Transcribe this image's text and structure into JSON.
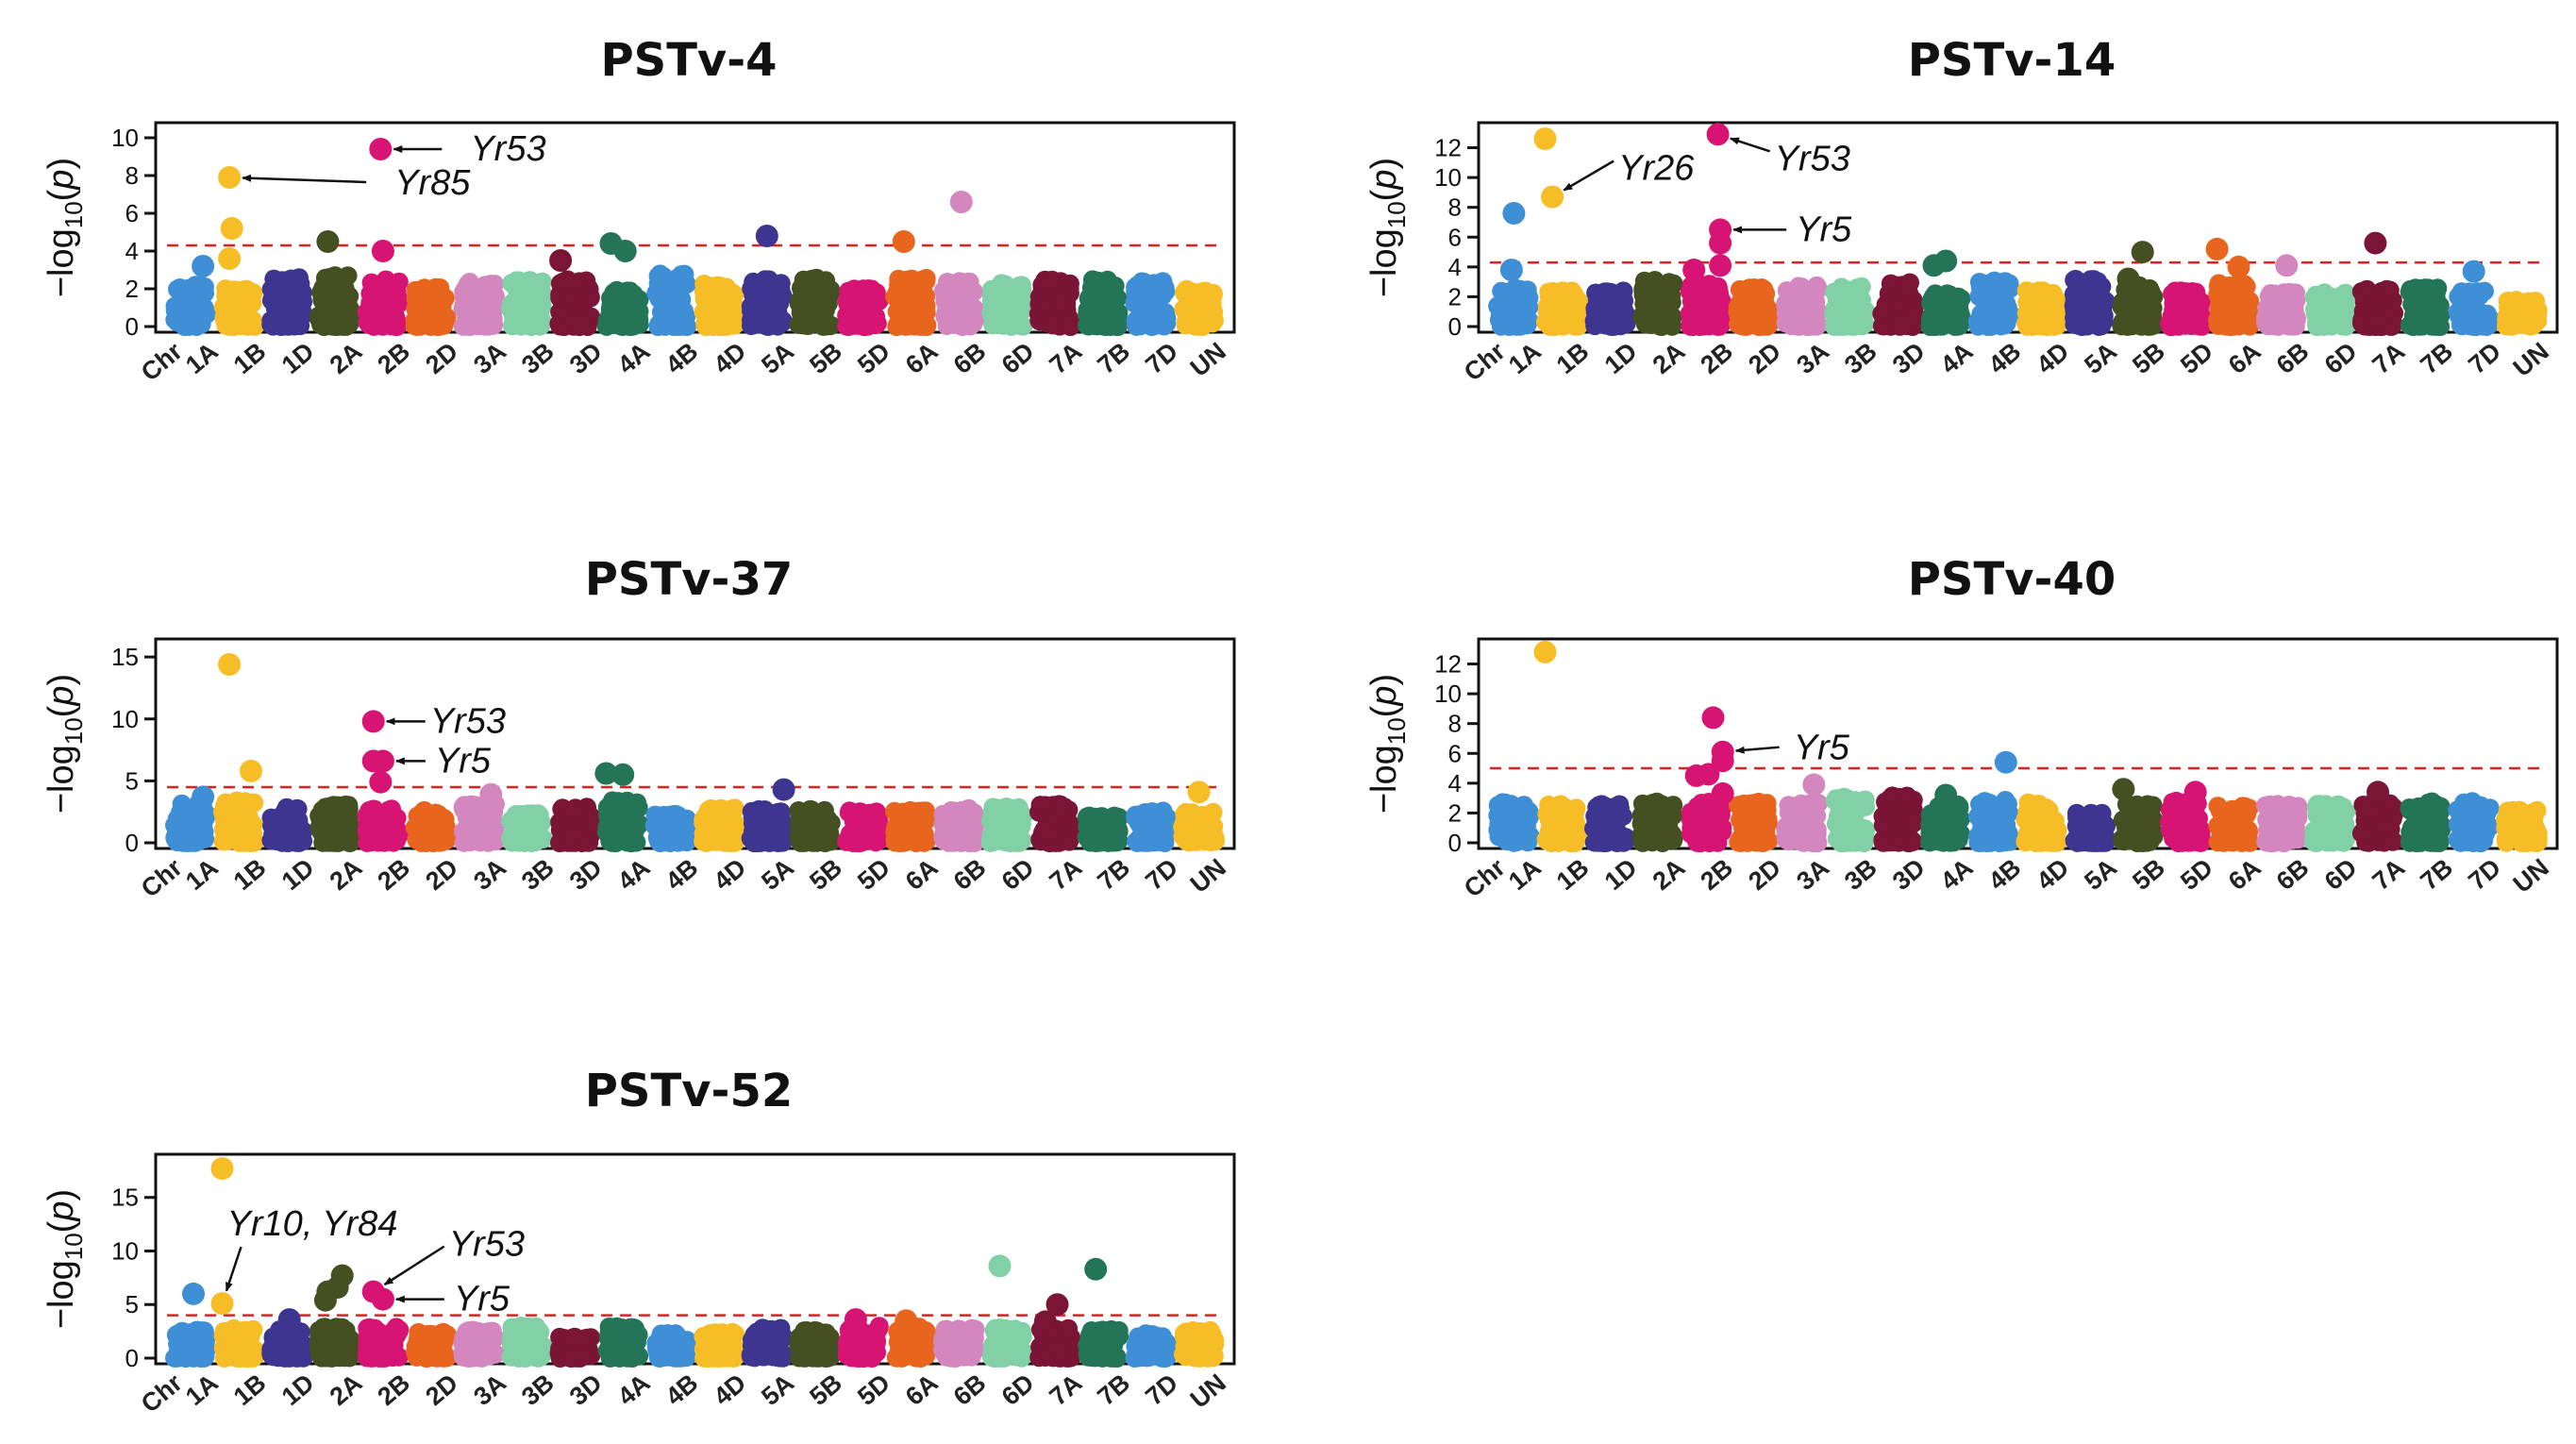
{
  "chart_data": [
    {
      "type": "scatter",
      "title": "PSTv-4",
      "ylabel": "−log10(p)",
      "ylim": [
        0,
        10.5
      ],
      "yticks": [
        0,
        2,
        4,
        6,
        8,
        10
      ],
      "threshold": 4.3,
      "chromosomes": [
        "Chr",
        "1A",
        "1B",
        "1D",
        "2A",
        "2B",
        "2D",
        "3A",
        "3B",
        "3D",
        "4A",
        "4B",
        "4D",
        "5A",
        "5B",
        "5D",
        "6A",
        "6B",
        "6D",
        "7A",
        "7B",
        "7D",
        "UN"
      ],
      "base_levels": [
        2.2,
        2.0,
        2.6,
        2.7,
        2.5,
        2.2,
        2.4,
        2.6,
        2.5,
        2.0,
        2.8,
        2.3,
        2.5,
        2.6,
        2.0,
        2.6,
        2.4,
        2.3,
        2.5,
        2.5,
        2.4,
        2.0
      ],
      "highlights": [
        {
          "chr": "1A",
          "pos": 0.75,
          "y": 3.2
        },
        {
          "chr": "1B",
          "pos": 0.3,
          "y": 3.6
        },
        {
          "chr": "1B",
          "pos": 0.35,
          "y": 5.2
        },
        {
          "chr": "1B",
          "pos": 0.3,
          "y": 7.9
        },
        {
          "chr": "2A",
          "pos": 0.35,
          "y": 4.5
        },
        {
          "chr": "2B",
          "pos": 0.5,
          "y": 4.0
        },
        {
          "chr": "2B",
          "pos": 0.45,
          "y": 9.4
        },
        {
          "chr": "3D",
          "pos": 0.2,
          "y": 3.5
        },
        {
          "chr": "4A",
          "pos": 0.25,
          "y": 4.4
        },
        {
          "chr": "4A",
          "pos": 0.55,
          "y": 4.0
        },
        {
          "chr": "5A",
          "pos": 0.5,
          "y": 4.8
        },
        {
          "chr": "6A",
          "pos": 0.35,
          "y": 4.5
        },
        {
          "chr": "6B",
          "pos": 0.55,
          "y": 6.6
        }
      ],
      "annotations": [
        {
          "label": "Yr85",
          "chr": "1B",
          "pos": 0.3,
          "y": 7.9
        },
        {
          "label": "Yr53",
          "chr": "2B",
          "pos": 0.45,
          "y": 9.4
        }
      ]
    },
    {
      "type": "scatter",
      "title": "PSTv-14",
      "ylabel": "−log10(p)",
      "ylim": [
        0,
        13.3
      ],
      "yticks": [
        0,
        2,
        4,
        6,
        8,
        10,
        12
      ],
      "threshold": 4.3,
      "chromosomes": [
        "Chr",
        "1A",
        "1B",
        "1D",
        "2A",
        "2B",
        "2D",
        "3A",
        "3B",
        "3D",
        "4A",
        "4B",
        "4D",
        "5A",
        "5B",
        "5D",
        "6A",
        "6B",
        "6D",
        "7A",
        "7B",
        "7D",
        "UN"
      ],
      "base_levels": [
        2.6,
        2.4,
        2.4,
        3.2,
        2.9,
        2.6,
        2.8,
        2.7,
        3.0,
        2.2,
        3.1,
        2.4,
        3.2,
        2.8,
        2.4,
        2.9,
        2.3,
        2.3,
        2.6,
        2.6,
        2.4,
        1.8
      ],
      "highlights": [
        {
          "chr": "1A",
          "pos": 0.45,
          "y": 3.8
        },
        {
          "chr": "1A",
          "pos": 0.5,
          "y": 7.6
        },
        {
          "chr": "1B",
          "pos": 0.15,
          "y": 12.6
        },
        {
          "chr": "1B",
          "pos": 0.3,
          "y": 8.7
        },
        {
          "chr": "2B",
          "pos": 0.25,
          "y": 3.8
        },
        {
          "chr": "2B",
          "pos": 0.8,
          "y": 4.1
        },
        {
          "chr": "2B",
          "pos": 0.8,
          "y": 5.6
        },
        {
          "chr": "2B",
          "pos": 0.8,
          "y": 6.5
        },
        {
          "chr": "2B",
          "pos": 0.75,
          "y": 12.9
        },
        {
          "chr": "4A",
          "pos": 0.25,
          "y": 4.1
        },
        {
          "chr": "4A",
          "pos": 0.5,
          "y": 4.4
        },
        {
          "chr": "5B",
          "pos": 0.3,
          "y": 3.2
        },
        {
          "chr": "5B",
          "pos": 0.6,
          "y": 5.0
        },
        {
          "chr": "6A",
          "pos": 0.15,
          "y": 5.2
        },
        {
          "chr": "6A",
          "pos": 0.6,
          "y": 4.0
        },
        {
          "chr": "6B",
          "pos": 0.6,
          "y": 4.1
        },
        {
          "chr": "7A",
          "pos": 0.45,
          "y": 5.6
        },
        {
          "chr": "7D",
          "pos": 0.5,
          "y": 3.7
        }
      ],
      "annotations": [
        {
          "label": "Yr26",
          "chr": "1B",
          "pos": 0.3,
          "y": 8.7
        },
        {
          "label": "Yr53",
          "chr": "2B",
          "pos": 0.75,
          "y": 12.9
        },
        {
          "label": "Yr5",
          "chr": "2B",
          "pos": 0.8,
          "y": 6.5
        }
      ]
    },
    {
      "type": "scatter",
      "title": "PSTv-37",
      "ylabel": "−log10(p)",
      "ylim": [
        0,
        16
      ],
      "yticks": [
        0,
        5,
        10,
        15
      ],
      "threshold": 4.5,
      "chromosomes": [
        "Chr",
        "1A",
        "1B",
        "1D",
        "2A",
        "2B",
        "2D",
        "3A",
        "3B",
        "3D",
        "4A",
        "4B",
        "4D",
        "5A",
        "5B",
        "5D",
        "6A",
        "6B",
        "6D",
        "7A",
        "7B",
        "7D",
        "UN"
      ],
      "base_levels": [
        3.2,
        3.4,
        2.9,
        3.1,
        2.8,
        2.6,
        3.2,
        2.4,
        2.9,
        3.4,
        2.3,
        2.8,
        2.7,
        2.7,
        2.6,
        2.6,
        2.8,
        3.0,
        3.1,
        2.4,
        2.6,
        2.5
      ],
      "highlights": [
        {
          "chr": "1A",
          "pos": 0.75,
          "y": 3.7
        },
        {
          "chr": "1B",
          "pos": 0.3,
          "y": 14.4
        },
        {
          "chr": "1B",
          "pos": 0.75,
          "y": 5.8
        },
        {
          "chr": "2B",
          "pos": 0.3,
          "y": 9.8
        },
        {
          "chr": "2B",
          "pos": 0.3,
          "y": 6.6
        },
        {
          "chr": "2B",
          "pos": 0.5,
          "y": 6.6
        },
        {
          "chr": "2B",
          "pos": 0.45,
          "y": 4.9
        },
        {
          "chr": "3A",
          "pos": 0.75,
          "y": 3.9
        },
        {
          "chr": "4A",
          "pos": 0.15,
          "y": 5.6
        },
        {
          "chr": "4A",
          "pos": 0.5,
          "y": 5.5
        },
        {
          "chr": "5A",
          "pos": 0.85,
          "y": 4.3
        },
        {
          "chr": "UN",
          "pos": 0.5,
          "y": 4.1
        }
      ],
      "annotations": [
        {
          "label": "Yr53",
          "chr": "2B",
          "pos": 0.3,
          "y": 9.8
        },
        {
          "label": "Yr5",
          "chr": "2B",
          "pos": 0.5,
          "y": 6.6
        }
      ]
    },
    {
      "type": "scatter",
      "title": "PSTv-40",
      "ylabel": "−log10(p)",
      "ylim": [
        0,
        13.3
      ],
      "yticks": [
        0,
        2,
        4,
        6,
        8,
        10,
        12
      ],
      "threshold": 5.0,
      "chromosomes": [
        "Chr",
        "1A",
        "1B",
        "1D",
        "2A",
        "2B",
        "2D",
        "3A",
        "3B",
        "3D",
        "4A",
        "4B",
        "4D",
        "5A",
        "5B",
        "5D",
        "6A",
        "6B",
        "6D",
        "7A",
        "7B",
        "7D",
        "UN"
      ],
      "base_levels": [
        2.8,
        2.6,
        2.6,
        2.8,
        2.8,
        2.8,
        2.7,
        3.1,
        3.2,
        2.6,
        2.9,
        2.7,
        2.0,
        2.6,
        2.8,
        2.5,
        2.6,
        2.6,
        2.7,
        2.8,
        2.8,
        2.2
      ],
      "highlights": [
        {
          "chr": "1B",
          "pos": 0.15,
          "y": 12.8
        },
        {
          "chr": "2B",
          "pos": 0.3,
          "y": 4.5
        },
        {
          "chr": "2B",
          "pos": 0.55,
          "y": 4.6
        },
        {
          "chr": "2B",
          "pos": 0.65,
          "y": 8.4
        },
        {
          "chr": "2B",
          "pos": 0.85,
          "y": 5.5
        },
        {
          "chr": "2B",
          "pos": 0.85,
          "y": 6.1
        },
        {
          "chr": "2B",
          "pos": 0.85,
          "y": 3.3
        },
        {
          "chr": "3A",
          "pos": 0.75,
          "y": 3.9
        },
        {
          "chr": "4A",
          "pos": 0.5,
          "y": 3.2
        },
        {
          "chr": "4B",
          "pos": 0.75,
          "y": 5.4
        },
        {
          "chr": "5B",
          "pos": 0.2,
          "y": 3.6
        },
        {
          "chr": "5D",
          "pos": 0.7,
          "y": 3.4
        },
        {
          "chr": "7A",
          "pos": 0.5,
          "y": 3.4
        }
      ],
      "annotations": [
        {
          "label": "Yr5",
          "chr": "2B",
          "pos": 0.85,
          "y": 6.1
        }
      ]
    },
    {
      "type": "scatter",
      "title": "PSTv-52",
      "ylabel": "−log10(p)",
      "ylim": [
        0,
        18.5
      ],
      "yticks": [
        0,
        5,
        10,
        15
      ],
      "threshold": 4.0,
      "chromosomes": [
        "Chr",
        "1A",
        "1B",
        "1D",
        "2A",
        "2B",
        "2D",
        "3A",
        "3B",
        "3D",
        "4A",
        "4B",
        "4D",
        "5A",
        "5B",
        "5D",
        "6A",
        "6B",
        "6D",
        "7A",
        "7B",
        "7D",
        "UN"
      ],
      "base_levels": [
        2.6,
        2.8,
        2.7,
        2.9,
        2.9,
        2.4,
        2.6,
        3.0,
        2.0,
        3.0,
        2.4,
        2.5,
        2.8,
        2.6,
        3.0,
        2.9,
        2.8,
        2.9,
        2.8,
        2.7,
        2.3,
        2.6
      ],
      "highlights": [
        {
          "chr": "1A",
          "pos": 0.55,
          "y": 6.0
        },
        {
          "chr": "1B",
          "pos": 0.15,
          "y": 17.7
        },
        {
          "chr": "1B",
          "pos": 0.15,
          "y": 5.1
        },
        {
          "chr": "1D",
          "pos": 0.55,
          "y": 3.6
        },
        {
          "chr": "2A",
          "pos": 0.3,
          "y": 5.4
        },
        {
          "chr": "2A",
          "pos": 0.35,
          "y": 6.2
        },
        {
          "chr": "2A",
          "pos": 0.55,
          "y": 6.6
        },
        {
          "chr": "2A",
          "pos": 0.65,
          "y": 7.7
        },
        {
          "chr": "2B",
          "pos": 0.3,
          "y": 6.2
        },
        {
          "chr": "2B",
          "pos": 0.5,
          "y": 5.5
        },
        {
          "chr": "5D",
          "pos": 0.35,
          "y": 3.6
        },
        {
          "chr": "6A",
          "pos": 0.4,
          "y": 3.5
        },
        {
          "chr": "6D",
          "pos": 0.35,
          "y": 8.6
        },
        {
          "chr": "7A",
          "pos": 0.3,
          "y": 3.4
        },
        {
          "chr": "7A",
          "pos": 0.55,
          "y": 5.0
        },
        {
          "chr": "7B",
          "pos": 0.35,
          "y": 8.3
        }
      ],
      "annotations": [
        {
          "label": "Yr10, Yr84",
          "chr": "1B",
          "pos": 0.15,
          "y": 5.1
        },
        {
          "label": "Yr53",
          "chr": "2B",
          "pos": 0.3,
          "y": 6.2
        },
        {
          "label": "Yr5",
          "chr": "2B",
          "pos": 0.5,
          "y": 5.5
        }
      ]
    }
  ],
  "colors": {
    "chromosomes": [
      "#3f8fd6",
      "#f6bd27",
      "#3e3591",
      "#455022",
      "#d71473",
      "#e8651e",
      "#d487bf",
      "#82d0a6",
      "#7a1536",
      "#247557",
      "#3f8fd6",
      "#f6bd27",
      "#3e3591",
      "#455022",
      "#d71473",
      "#e8651e",
      "#d487bf",
      "#82d0a6",
      "#7a1536",
      "#247557",
      "#3f8fd6",
      "#f6bd27"
    ],
    "threshold": "#e0201f"
  }
}
